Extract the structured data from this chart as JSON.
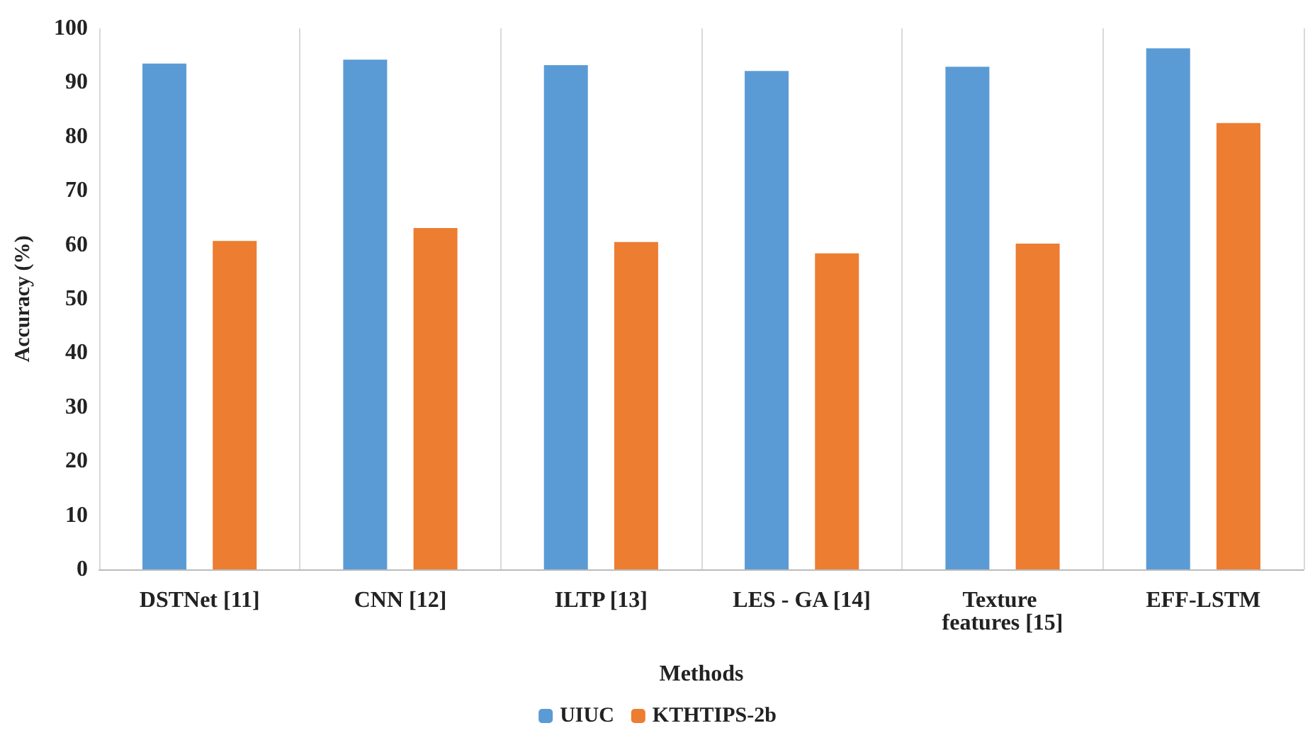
{
  "chart_data": {
    "type": "bar",
    "xlabel": "Methods",
    "ylabel": "Accuracy (%)",
    "categories": [
      "DSTNet [11]",
      "CNN [12]",
      "ILTP [13]",
      "LES - GA [14]",
      "Texture features [15]",
      "EFF-LSTM"
    ],
    "series": [
      {
        "name": "UIUC",
        "color": "#5b9bd5",
        "values": [
          93.5,
          94.2,
          93.2,
          92.1,
          92.9,
          96.3
        ]
      },
      {
        "name": "KTHTIPS-2b",
        "color": "#ed7d31",
        "values": [
          60.7,
          63.1,
          60.5,
          58.4,
          60.2,
          82.5
        ]
      }
    ],
    "ylim": [
      0,
      100
    ],
    "yticks": [
      0,
      10,
      20,
      30,
      40,
      50,
      60,
      70,
      80,
      90,
      100
    ],
    "grid": "x",
    "legend": "bottom"
  }
}
